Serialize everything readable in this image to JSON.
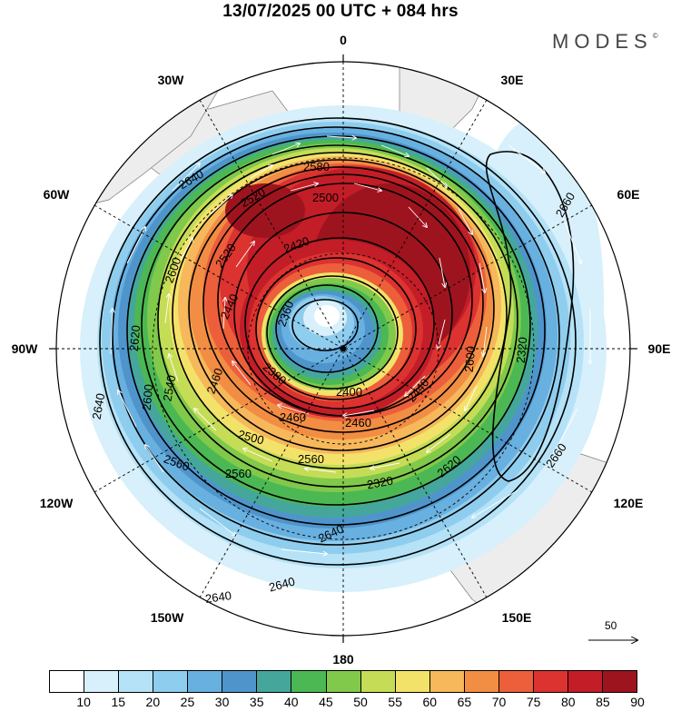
{
  "title": "13/07/2025  00 UTC  + 084 hrs",
  "brand": "MODES",
  "brand_mark": "©",
  "lon_labels": {
    "n0": "0",
    "e30": "30E",
    "e60": "60E",
    "e90": "90E",
    "e120": "120E",
    "e150": "150E",
    "s180": "180",
    "w150": "150W",
    "w120": "120W",
    "w90": "90W",
    "w60": "60W",
    "w30": "30W"
  },
  "reference_vector": {
    "label": "50",
    "length_units": 50
  },
  "contour_labels": [
    "2320",
    "2360",
    "2380",
    "2400",
    "2420",
    "2440",
    "2460",
    "2480",
    "2500",
    "2520",
    "2540",
    "2560",
    "2580",
    "2600",
    "2620",
    "2640",
    "2660"
  ],
  "colorbar": {
    "colors": [
      "#ffffff",
      "#d7f0fb",
      "#b5e2f6",
      "#8fcdee",
      "#68b0e0",
      "#4f95cc",
      "#45a79b",
      "#4cb853",
      "#80c94b",
      "#c5dd56",
      "#f3e26a",
      "#f6b85a",
      "#f28d44",
      "#ec5f3a",
      "#dc3230",
      "#c31d27",
      "#9e141e"
    ],
    "ticks": [
      "10",
      "15",
      "20",
      "25",
      "30",
      "35",
      "40",
      "45",
      "50",
      "55",
      "60",
      "65",
      "70",
      "75",
      "80",
      "85",
      "90"
    ]
  }
}
